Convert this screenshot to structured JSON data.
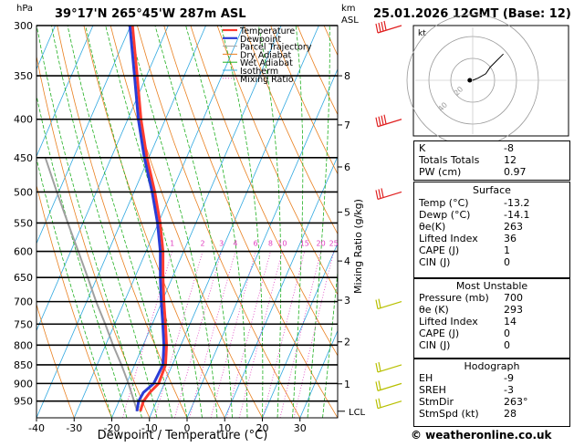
{
  "header": {
    "location": "39°17'N 265°45'W 287m ASL",
    "datetime": "25.01.2026 12GMT (Base: 12)",
    "pressure_unit": "hPa",
    "height_unit_top": "km",
    "height_unit_bottom": "ASL"
  },
  "chart_data": {
    "type": "skew-t",
    "xlabel": "Dewpoint / Temperature (°C)",
    "ylabel": "hPa",
    "mixing_ratio_label": "Mixing Ratio (g/kg)",
    "x_ticks": [
      "-40",
      "-30",
      "-20",
      "-10",
      "0",
      "10",
      "20",
      "30"
    ],
    "x_range": [
      -40,
      40
    ],
    "pressure_levels": [
      "300",
      "350",
      "400",
      "450",
      "500",
      "550",
      "600",
      "650",
      "700",
      "750",
      "800",
      "850",
      "900",
      "950"
    ],
    "pressure_range": [
      300,
      1000
    ],
    "km_ticks": [
      {
        "km": "8",
        "p": 350
      },
      {
        "km": "7",
        "p": 407
      },
      {
        "km": "6",
        "p": 463
      },
      {
        "km": "5",
        "p": 532
      },
      {
        "km": "4",
        "p": 618
      },
      {
        "km": "3",
        "p": 697
      },
      {
        "km": "2",
        "p": 792
      },
      {
        "km": "1",
        "p": 901
      }
    ],
    "lcl_label": "LCL",
    "lcl_pressure": 980,
    "mixing_ratio_values": [
      "1",
      "2",
      "3",
      "4",
      "6",
      "8",
      "10",
      "15",
      "20",
      "25"
    ],
    "temperature_profile": [
      {
        "p": 980,
        "t": -13.2
      },
      {
        "p": 950,
        "t": -13.5
      },
      {
        "p": 925,
        "t": -12.8
      },
      {
        "p": 900,
        "t": -11.5
      },
      {
        "p": 850,
        "t": -11.8
      },
      {
        "p": 800,
        "t": -13.8
      },
      {
        "p": 750,
        "t": -16.5
      },
      {
        "p": 700,
        "t": -19.5
      },
      {
        "p": 650,
        "t": -22.5
      },
      {
        "p": 600,
        "t": -25.5
      },
      {
        "p": 550,
        "t": -29.5
      },
      {
        "p": 500,
        "t": -34.5
      },
      {
        "p": 450,
        "t": -40.5
      },
      {
        "p": 400,
        "t": -46.5
      },
      {
        "p": 350,
        "t": -52.5
      },
      {
        "p": 300,
        "t": -59.5
      }
    ],
    "dewpoint_profile": [
      {
        "p": 980,
        "t": -14.1
      },
      {
        "p": 950,
        "t": -14.8
      },
      {
        "p": 925,
        "t": -14.5
      },
      {
        "p": 900,
        "t": -12.8
      },
      {
        "p": 850,
        "t": -12.5
      },
      {
        "p": 800,
        "t": -14.5
      },
      {
        "p": 750,
        "t": -17.2
      },
      {
        "p": 700,
        "t": -20.2
      },
      {
        "p": 650,
        "t": -23.2
      },
      {
        "p": 600,
        "t": -26.2
      },
      {
        "p": 550,
        "t": -30.2
      },
      {
        "p": 500,
        "t": -35.2
      },
      {
        "p": 450,
        "t": -41.2
      },
      {
        "p": 400,
        "t": -47.2
      },
      {
        "p": 350,
        "t": -53.2
      },
      {
        "p": 300,
        "t": -60.2
      }
    ],
    "parcel_profile": [
      {
        "p": 980,
        "t": -14.0
      },
      {
        "p": 950,
        "t": -16.0
      },
      {
        "p": 900,
        "t": -19.5
      },
      {
        "p": 850,
        "t": -23.5
      },
      {
        "p": 800,
        "t": -28.0
      },
      {
        "p": 750,
        "t": -32.5
      },
      {
        "p": 700,
        "t": -37.5
      },
      {
        "p": 650,
        "t": -42.5
      },
      {
        "p": 600,
        "t": -48.0
      },
      {
        "p": 550,
        "t": -54.0
      },
      {
        "p": 500,
        "t": -60.5
      },
      {
        "p": 450,
        "t": -67.5
      }
    ],
    "wind_barb_levels": [
      300,
      400,
      500,
      700,
      850,
      900,
      950
    ],
    "legend": [
      {
        "label": "Temperature",
        "color": "#ff3b30",
        "style": "solid-thick"
      },
      {
        "label": "Dewpoint",
        "color": "#2a3cd6",
        "style": "solid-thick"
      },
      {
        "label": "Parcel Trajectory",
        "color": "#a0a0a0",
        "style": "solid"
      },
      {
        "label": "Dry Adiabat",
        "color": "#e98020",
        "style": "solid"
      },
      {
        "label": "Wet Adiabat",
        "color": "#20b020",
        "style": "solid"
      },
      {
        "label": "Isotherm",
        "color": "#30a8e0",
        "style": "solid"
      },
      {
        "label": "Mixing Ratio",
        "color": "#e040c0",
        "style": "dotted"
      }
    ],
    "colors": {
      "temperature": "#ff3b30",
      "dewpoint": "#2a3cd6",
      "parcel": "#a0a0a0",
      "dry_adiabat": "#e98020",
      "wet_adiabat": "#20b020",
      "isotherm": "#30a8e0",
      "mixing_ratio": "#e040c0",
      "barb_upper": "#e02020",
      "barb_lower": "#b8c000"
    }
  },
  "hodograph": {
    "unit": "kt",
    "ring_labels": [
      "20",
      "40"
    ],
    "trace": [
      [
        0,
        0
      ],
      [
        5,
        2
      ],
      [
        12,
        6
      ],
      [
        16,
        12
      ],
      [
        22,
        18
      ],
      [
        28,
        24
      ]
    ],
    "storm_motion": [
      -2,
      0
    ]
  },
  "indices": {
    "k": {
      "label": "K",
      "value": "-8"
    },
    "totals": {
      "label": "Totals Totals",
      "value": "12"
    },
    "pw": {
      "label": "PW (cm)",
      "value": "0.97"
    }
  },
  "surface": {
    "title": "Surface",
    "rows": [
      {
        "label": "Temp (°C)",
        "value": "-13.2"
      },
      {
        "label": "Dewp (°C)",
        "value": "-14.1"
      },
      {
        "label": "θe(K)",
        "value": "263"
      },
      {
        "label": "Lifted Index",
        "value": "36"
      },
      {
        "label": "CAPE (J)",
        "value": "1"
      },
      {
        "label": "CIN (J)",
        "value": "0"
      }
    ]
  },
  "most_unstable": {
    "title": "Most Unstable",
    "rows": [
      {
        "label": "Pressure (mb)",
        "value": "700"
      },
      {
        "label": "θe (K)",
        "value": "293"
      },
      {
        "label": "Lifted Index",
        "value": "14"
      },
      {
        "label": "CAPE (J)",
        "value": "0"
      },
      {
        "label": "CIN (J)",
        "value": "0"
      }
    ]
  },
  "hodograph_table": {
    "title": "Hodograph",
    "rows": [
      {
        "label": "EH",
        "value": "-9"
      },
      {
        "label": "SREH",
        "value": "-3"
      },
      {
        "label": "StmDir",
        "value": "263°"
      },
      {
        "label": "StmSpd (kt)",
        "value": "28"
      }
    ]
  },
  "footer": {
    "copyright": "© weatheronline.co.uk"
  }
}
